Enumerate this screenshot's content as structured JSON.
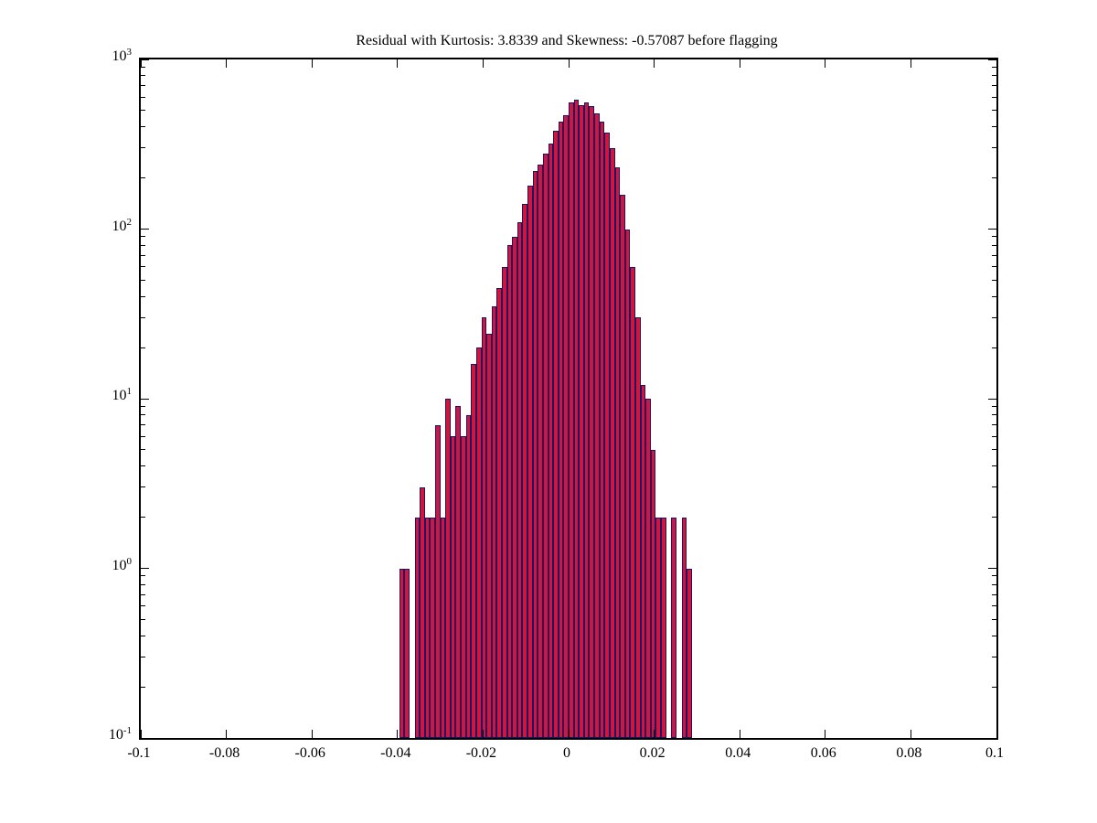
{
  "figure": {
    "background": "#ffffff"
  },
  "chart_data": {
    "type": "bar",
    "title": "Residual with Kurtosis: 3.8339 and Skewness: -0.57087 before flagging",
    "xlabel": "",
    "ylabel": "",
    "grid": false,
    "legend": null,
    "xlim": [
      -0.1,
      0.1
    ],
    "x_ticks": [
      -0.1,
      -0.08,
      -0.06,
      -0.04,
      -0.02,
      0,
      0.02,
      0.04,
      0.06,
      0.08,
      0.1
    ],
    "x_tick_labels": [
      "-0.1",
      "-0.08",
      "-0.06",
      "-0.04",
      "-0.02",
      "0",
      "0.02",
      "0.04",
      "0.06",
      "0.08",
      "0.1"
    ],
    "y_scale": "log10",
    "y_exponent_range": [
      -1,
      3
    ],
    "y_tick_exponents": [
      3,
      2,
      1,
      0,
      -1
    ],
    "y_tick_label_base": "10",
    "bar_fill": "#d2153c",
    "bar_edge": "#1c1464",
    "histogram": {
      "first_bin_center": -0.039,
      "bin_width": 0.0012,
      "counts": [
        1,
        1,
        0,
        2,
        3,
        2,
        2,
        7,
        2,
        10,
        6,
        9,
        6,
        8,
        16,
        20,
        30,
        24,
        35,
        45,
        60,
        80,
        90,
        110,
        140,
        180,
        220,
        240,
        280,
        320,
        380,
        430,
        470,
        560,
        580,
        540,
        555,
        530,
        480,
        430,
        370,
        300,
        230,
        160,
        100,
        60,
        30,
        12,
        10,
        5,
        2,
        2,
        0,
        2,
        0,
        2,
        1
      ]
    }
  }
}
